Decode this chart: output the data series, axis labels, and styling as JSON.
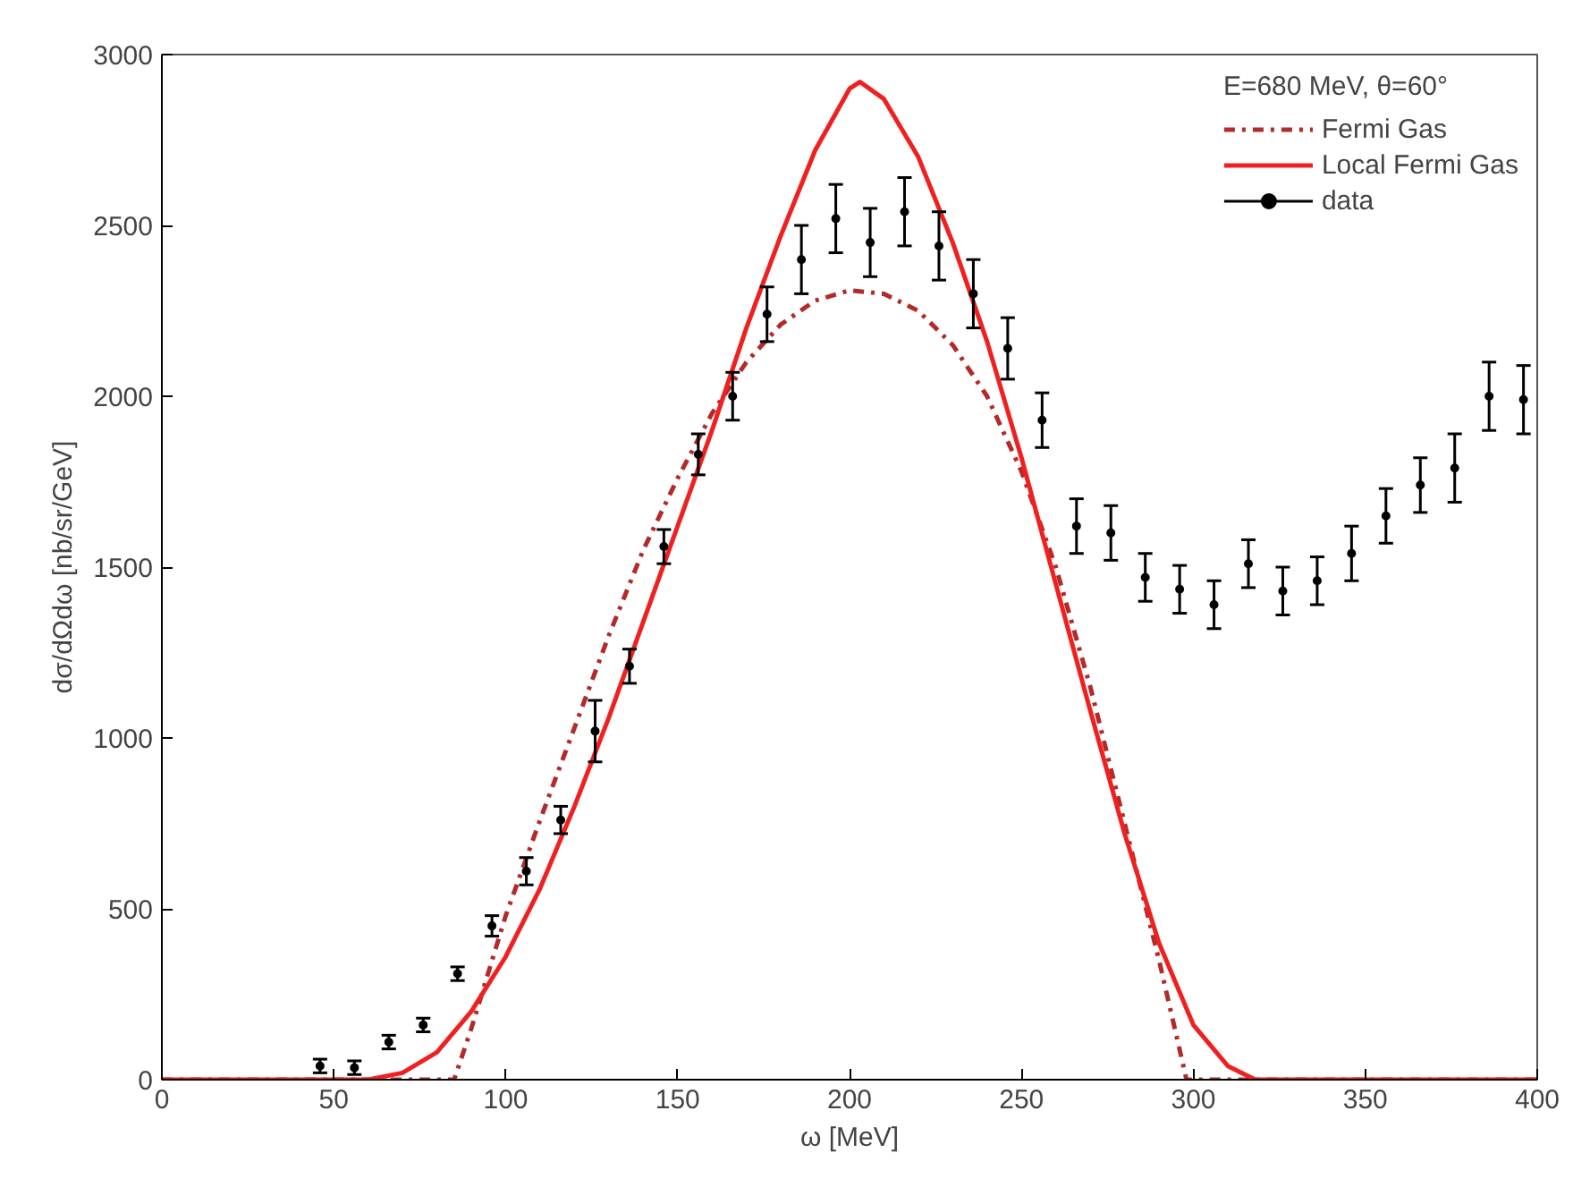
{
  "chart_data": {
    "type": "line",
    "xlabel": "ω [MeV]",
    "ylabel": "dσ/dΩdω [nb/sr/GeV]",
    "legend_title": "E=680 MeV, θ=60°",
    "xlim": [
      0,
      400
    ],
    "ylim": [
      0,
      3000
    ],
    "xticks": [
      0,
      50,
      100,
      150,
      200,
      250,
      300,
      350,
      400
    ],
    "yticks": [
      0,
      500,
      1000,
      1500,
      2000,
      2500,
      3000
    ],
    "grid": false,
    "legend": "top right",
    "series": [
      {
        "name": "Fermi Gas",
        "color": "#b22a2a",
        "line_style": "dashdot",
        "x": [
          0,
          85,
          90,
          100,
          110,
          120,
          130,
          140,
          150,
          160,
          170,
          180,
          190,
          200,
          210,
          220,
          230,
          240,
          250,
          260,
          270,
          280,
          290,
          298,
          400
        ],
        "values": [
          0,
          0,
          150,
          480,
          760,
          1030,
          1300,
          1550,
          1760,
          1950,
          2100,
          2210,
          2280,
          2310,
          2300,
          2250,
          2150,
          2000,
          1780,
          1500,
          1150,
          750,
          350,
          0,
          0
        ]
      },
      {
        "name": "Local Fermi Gas",
        "color": "#f02020",
        "line_style": "solid",
        "x": [
          0,
          60,
          70,
          80,
          90,
          100,
          110,
          120,
          130,
          140,
          150,
          160,
          170,
          180,
          190,
          200,
          203,
          210,
          220,
          230,
          240,
          250,
          260,
          270,
          280,
          290,
          300,
          310,
          318,
          400
        ],
        "values": [
          0,
          0,
          20,
          80,
          200,
          360,
          560,
          800,
          1060,
          1340,
          1620,
          1900,
          2200,
          2470,
          2720,
          2900,
          2920,
          2870,
          2700,
          2450,
          2160,
          1820,
          1450,
          1080,
          720,
          400,
          160,
          40,
          0,
          0
        ]
      },
      {
        "name": "data",
        "type": "scatter",
        "marker": "circle",
        "color": "#000000",
        "x": [
          46,
          56,
          66,
          76,
          86,
          96,
          106,
          116,
          126,
          136,
          146,
          156,
          166,
          176,
          186,
          196,
          206,
          216,
          226,
          236,
          246,
          256,
          266,
          276,
          286,
          296,
          306,
          316,
          326,
          336,
          346,
          356,
          366,
          376,
          386,
          396
        ],
        "values": [
          40,
          35,
          110,
          160,
          310,
          450,
          610,
          760,
          1020,
          1210,
          1560,
          1830,
          2000,
          2240,
          2400,
          2520,
          2450,
          2540,
          2440,
          2300,
          2140,
          1930,
          1620,
          1600,
          1470,
          1435,
          1390,
          1510,
          1430,
          1460,
          1540,
          1650,
          1740,
          1790,
          2000,
          1990
        ],
        "errors": [
          20,
          20,
          20,
          20,
          20,
          30,
          40,
          40,
          90,
          50,
          50,
          60,
          70,
          80,
          100,
          100,
          100,
          100,
          100,
          100,
          90,
          80,
          80,
          80,
          70,
          70,
          70,
          70,
          70,
          70,
          80,
          80,
          80,
          100,
          100,
          100
        ]
      }
    ]
  }
}
